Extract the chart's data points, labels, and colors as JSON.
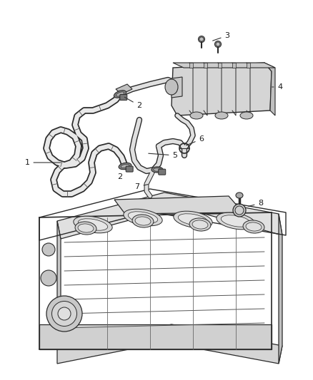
{
  "bg_color": "#ffffff",
  "line_color": "#2a2a2a",
  "label_color": "#1a1a1a",
  "fig_width": 4.38,
  "fig_height": 5.33,
  "dpi": 100,
  "hose_lw_outer": 5.5,
  "hose_lw_inner": 3.5,
  "hose_fill": "#d8d8d8",
  "hose_outer_color": "#2a2a2a",
  "hose_inner_color": "#f0f0f0"
}
